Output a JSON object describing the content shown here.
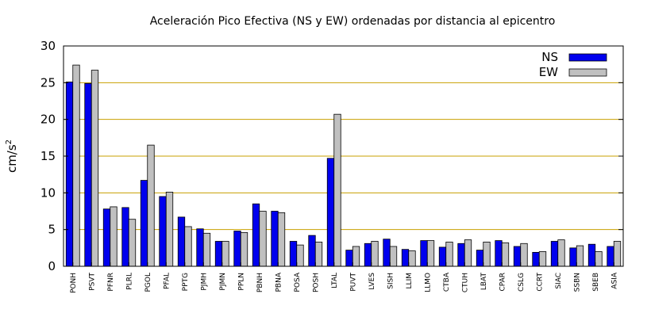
{
  "chart_data": {
    "type": "bar",
    "title": "Aceleración Pico Efectiva (NS y EW) ordenadas por distancia al epicentro",
    "ylabel": "cm/s",
    "ylabel_sup": "2",
    "xlabel": "",
    "ylim": [
      0,
      30
    ],
    "yticks": [
      0,
      5,
      10,
      15,
      20,
      25,
      30
    ],
    "grid": true,
    "legend_position": "top-right",
    "categories": [
      "PONH",
      "PSVT",
      "PFNR",
      "PLRL",
      "PGOL",
      "PFAL",
      "PPTG",
      "PJMH",
      "PJMN",
      "PPLN",
      "PBNH",
      "PBNA",
      "POSA",
      "POSH",
      "LTAL",
      "PUVT",
      "LVES",
      "SISH",
      "LLIM",
      "LLMO",
      "CTBA",
      "CTUH",
      "LBAT",
      "CPAR",
      "CSLG",
      "CCRT",
      "SIAC",
      "SSBN",
      "SBEB",
      "ASIA"
    ],
    "series": [
      {
        "name": "NS",
        "color": "#0000ee",
        "values": [
          25.1,
          24.9,
          7.8,
          8.0,
          11.7,
          9.5,
          6.7,
          5.1,
          3.4,
          4.8,
          8.5,
          7.5,
          3.4,
          4.2,
          14.7,
          2.2,
          3.1,
          3.7,
          2.3,
          3.5,
          2.6,
          3.1,
          2.2,
          3.5,
          2.7,
          1.9,
          3.4,
          2.5,
          3.0,
          2.7
        ]
      },
      {
        "name": "EW",
        "color": "#c0c0c0",
        "values": [
          27.4,
          26.7,
          8.1,
          6.4,
          16.5,
          10.1,
          5.4,
          4.5,
          3.4,
          4.6,
          7.5,
          7.3,
          2.9,
          3.3,
          20.7,
          2.7,
          3.4,
          2.7,
          2.1,
          3.5,
          3.3,
          3.6,
          3.3,
          3.2,
          3.1,
          2.0,
          3.6,
          2.8,
          2.0,
          3.4
        ]
      }
    ],
    "colors": {
      "grid": "#c8a000",
      "axis": "#000000"
    }
  }
}
